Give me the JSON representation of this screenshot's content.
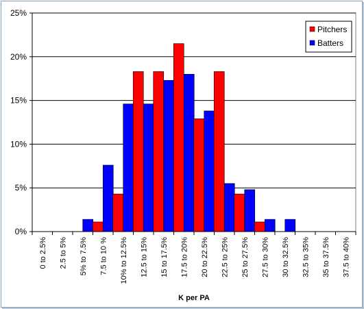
{
  "chart_data": {
    "type": "bar",
    "title": "",
    "xlabel": "K per PA",
    "ylabel": "",
    "ylim": [
      0,
      25
    ],
    "yticks": [
      0,
      5,
      10,
      15,
      20,
      25
    ],
    "ytick_labels": [
      "0%",
      "5%",
      "10%",
      "15%",
      "20%",
      "25%"
    ],
    "grid": "horizontal",
    "legend_position": "top-right",
    "categories": [
      "0 to 2.5%",
      "2.5 to 5%",
      "5% to 7.5%",
      "7.5 to 10 %",
      "10% to 12.5%",
      "12.5 to 15%",
      "15 to 17.5%",
      "17.5 to 20%",
      "20 to 22.5%",
      "22.5 to 25%",
      "25 to 27.5%",
      "27.5 to 30%",
      "30 to 32.5%",
      "32.5 to 35%",
      "35 to 37.5%",
      "37.5 to 40%"
    ],
    "series": [
      {
        "name": "Pitchers",
        "color": "#ff0000",
        "values": [
          0,
          0,
          0,
          1.1,
          4.3,
          18.3,
          18.3,
          21.5,
          12.9,
          18.3,
          4.3,
          1.1,
          0,
          0,
          0,
          0
        ]
      },
      {
        "name": "Batters",
        "color": "#0000ff",
        "values": [
          0,
          0,
          1.4,
          7.6,
          14.6,
          14.6,
          17.3,
          18.0,
          13.8,
          5.5,
          4.8,
          1.4,
          1.4,
          0,
          0,
          0
        ]
      }
    ]
  }
}
